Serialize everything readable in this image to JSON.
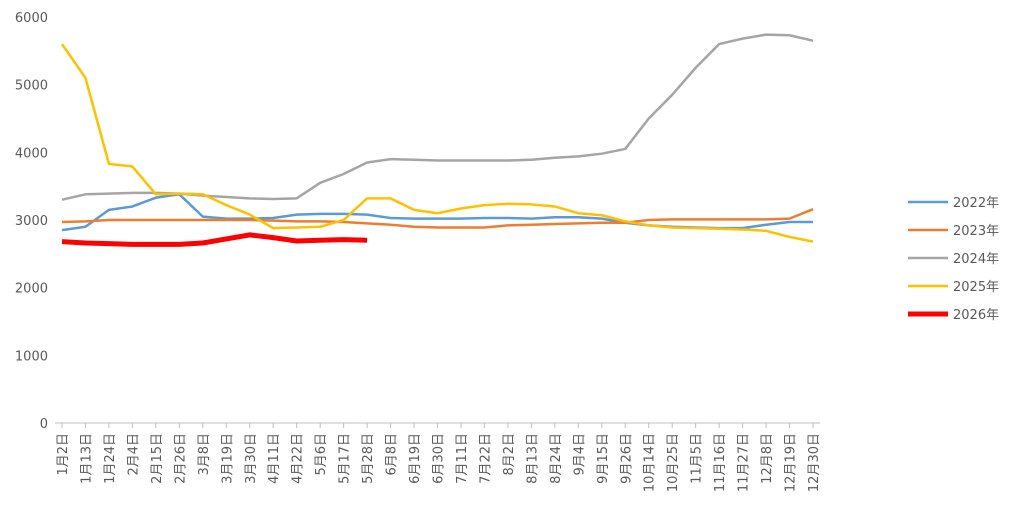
{
  "chart_data": {
    "type": "line",
    "categories": [
      "1月2日",
      "1月13日",
      "1月24日",
      "2月4日",
      "2月15日",
      "2月26日",
      "3月8日",
      "3月19日",
      "3月30日",
      "4月11日",
      "4月22日",
      "5月6日",
      "5月17日",
      "5月28日",
      "6月8日",
      "6月19日",
      "6月30日",
      "7月11日",
      "7月22日",
      "8月2日",
      "8月13日",
      "8月24日",
      "9月4日",
      "9月15日",
      "9月26日",
      "10月14日",
      "10月25日",
      "11月5日",
      "11月16日",
      "11月27日",
      "12月8日",
      "12月19日",
      "12月30日"
    ],
    "series": [
      {
        "name": "2022年",
        "color": "#5b9bd5",
        "values": [
          2850,
          2900,
          3150,
          3200,
          3330,
          3380,
          3050,
          3020,
          3020,
          3030,
          3080,
          3090,
          3090,
          3080,
          3030,
          3020,
          3020,
          3020,
          3030,
          3030,
          3020,
          3040,
          3040,
          3020,
          2960,
          2920,
          2900,
          2890,
          2880,
          2880,
          2930,
          2970,
          2970
        ]
      },
      {
        "name": "2023年",
        "color": "#ed7d31",
        "values": [
          2970,
          2980,
          3000,
          3000,
          3000,
          3000,
          3000,
          3000,
          3000,
          2990,
          2980,
          2980,
          2970,
          2950,
          2930,
          2900,
          2890,
          2890,
          2890,
          2920,
          2930,
          2940,
          2950,
          2960,
          2960,
          3000,
          3010,
          3010,
          3010,
          3010,
          3010,
          3020,
          3160
        ]
      },
      {
        "name": "2024年",
        "color": "#a5a5a5",
        "values": [
          3300,
          3380,
          3390,
          3400,
          3400,
          3390,
          3360,
          3340,
          3320,
          3310,
          3320,
          3550,
          3680,
          3850,
          3900,
          3890,
          3880,
          3880,
          3880,
          3880,
          3890,
          3920,
          3940,
          3980,
          4050,
          4500,
          4850,
          5250,
          5600,
          5680,
          5740,
          5730,
          5650
        ]
      },
      {
        "name": "2025年",
        "color": "#ffc000",
        "values": [
          5600,
          5100,
          3830,
          3790,
          3380,
          3390,
          3380,
          3220,
          3080,
          2880,
          2890,
          2900,
          3000,
          3320,
          3320,
          3150,
          3100,
          3170,
          3220,
          3240,
          3230,
          3200,
          3100,
          3070,
          2980,
          2920,
          2890,
          2880,
          2870,
          2860,
          2840,
          2750,
          2680
        ]
      },
      {
        "name": "2026年",
        "color": "#ff0000",
        "values": [
          2680,
          2660,
          2650,
          2640,
          2640,
          2640,
          2660,
          2720,
          2780,
          2740,
          2690,
          2700,
          2710,
          2700,
          null,
          null,
          null,
          null,
          null,
          null,
          null,
          null,
          null,
          null,
          null,
          null,
          null,
          null,
          null,
          null,
          null,
          null,
          null
        ]
      }
    ],
    "ylim": [
      0,
      6000
    ],
    "yticks": [
      0,
      1000,
      2000,
      3000,
      4000,
      5000,
      6000
    ],
    "grid": false,
    "legend": "right"
  }
}
